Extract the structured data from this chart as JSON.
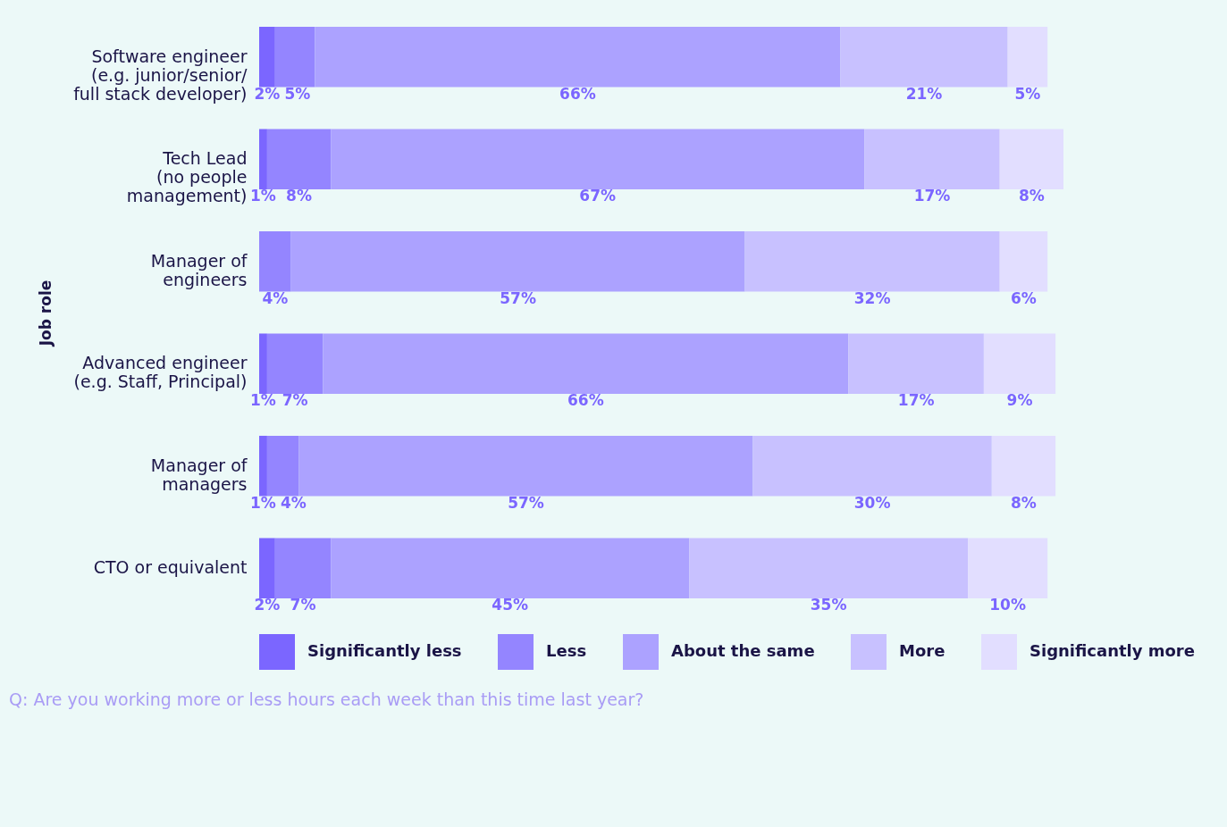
{
  "chart_data": {
    "type": "bar",
    "orientation": "horizontal",
    "stacked": true,
    "ylabel": "Job role",
    "legend": "bottom",
    "title": "Q: Are you working more or less hours each week than this time last year?",
    "categories": [
      "Software engineer\n(e.g. junior/senior/\nfull stack developer)",
      "Tech Lead\n(no people\nmanagement)",
      "Manager of\nengineers",
      "Advanced engineer\n(e.g. Staff, Principal)",
      "Manager of\nmanagers",
      "CTO or equivalent"
    ],
    "series": [
      {
        "name": "Significantly less",
        "color": "#7b66ff",
        "values": [
          2,
          1,
          0,
          1,
          1,
          2
        ],
        "value_labels": [
          "2%",
          "1%",
          null,
          "1%",
          "1%",
          "2%"
        ]
      },
      {
        "name": "Less",
        "color": "#9485ff",
        "values": [
          5,
          8,
          4,
          7,
          4,
          7
        ],
        "value_labels": [
          "5%",
          "8%",
          "4%",
          "7%",
          "4%",
          "7%"
        ]
      },
      {
        "name": "About the same",
        "color": "#aca2ff",
        "values": [
          66,
          67,
          57,
          66,
          57,
          45
        ],
        "value_labels": [
          "66%",
          "67%",
          "57%",
          "66%",
          "57%",
          "45%"
        ]
      },
      {
        "name": "More",
        "color": "#c8c1ff",
        "values": [
          21,
          17,
          32,
          17,
          30,
          35
        ],
        "value_labels": [
          "21%",
          "17%",
          "32%",
          "17%",
          "30%",
          "35%"
        ]
      },
      {
        "name": "Significantly more",
        "color": "#e2deff",
        "values": [
          5,
          8,
          6,
          9,
          8,
          10
        ],
        "value_labels": [
          "5%",
          "8%",
          "6%",
          "9%",
          "8%",
          "10%"
        ]
      }
    ]
  }
}
